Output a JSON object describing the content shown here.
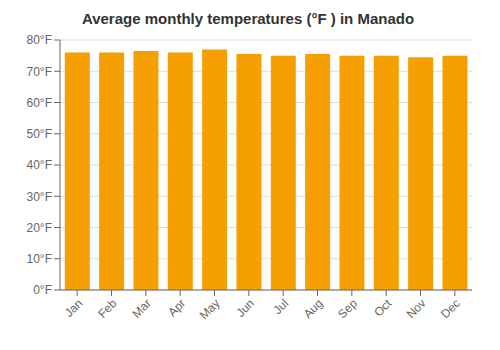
{
  "chart_data": {
    "type": "bar",
    "title": "Average monthly temperatures (°F ) in Manado",
    "categories": [
      "Jan",
      "Feb",
      "Mar",
      "Apr",
      "May",
      "Jun",
      "Jul",
      "Aug",
      "Sep",
      "Oct",
      "Nov",
      "Dec"
    ],
    "values": [
      76.0,
      76.0,
      76.5,
      76.0,
      77.0,
      75.5,
      75.0,
      75.5,
      75.0,
      75.0,
      74.5,
      75.0
    ],
    "color": "#F5A000",
    "ylim": [
      0,
      80
    ],
    "yticks": [
      {
        "value": 0,
        "label": "0°F"
      },
      {
        "value": 10,
        "label": "10°F"
      },
      {
        "value": 20,
        "label": "20°F"
      },
      {
        "value": 30,
        "label": "30°F"
      },
      {
        "value": 40,
        "label": "40°F"
      },
      {
        "value": 50,
        "label": "50°F"
      },
      {
        "value": 60,
        "label": "60°F"
      },
      {
        "value": 70,
        "label": "70°F"
      },
      {
        "value": 80,
        "label": "80°F"
      }
    ],
    "grid": true
  }
}
